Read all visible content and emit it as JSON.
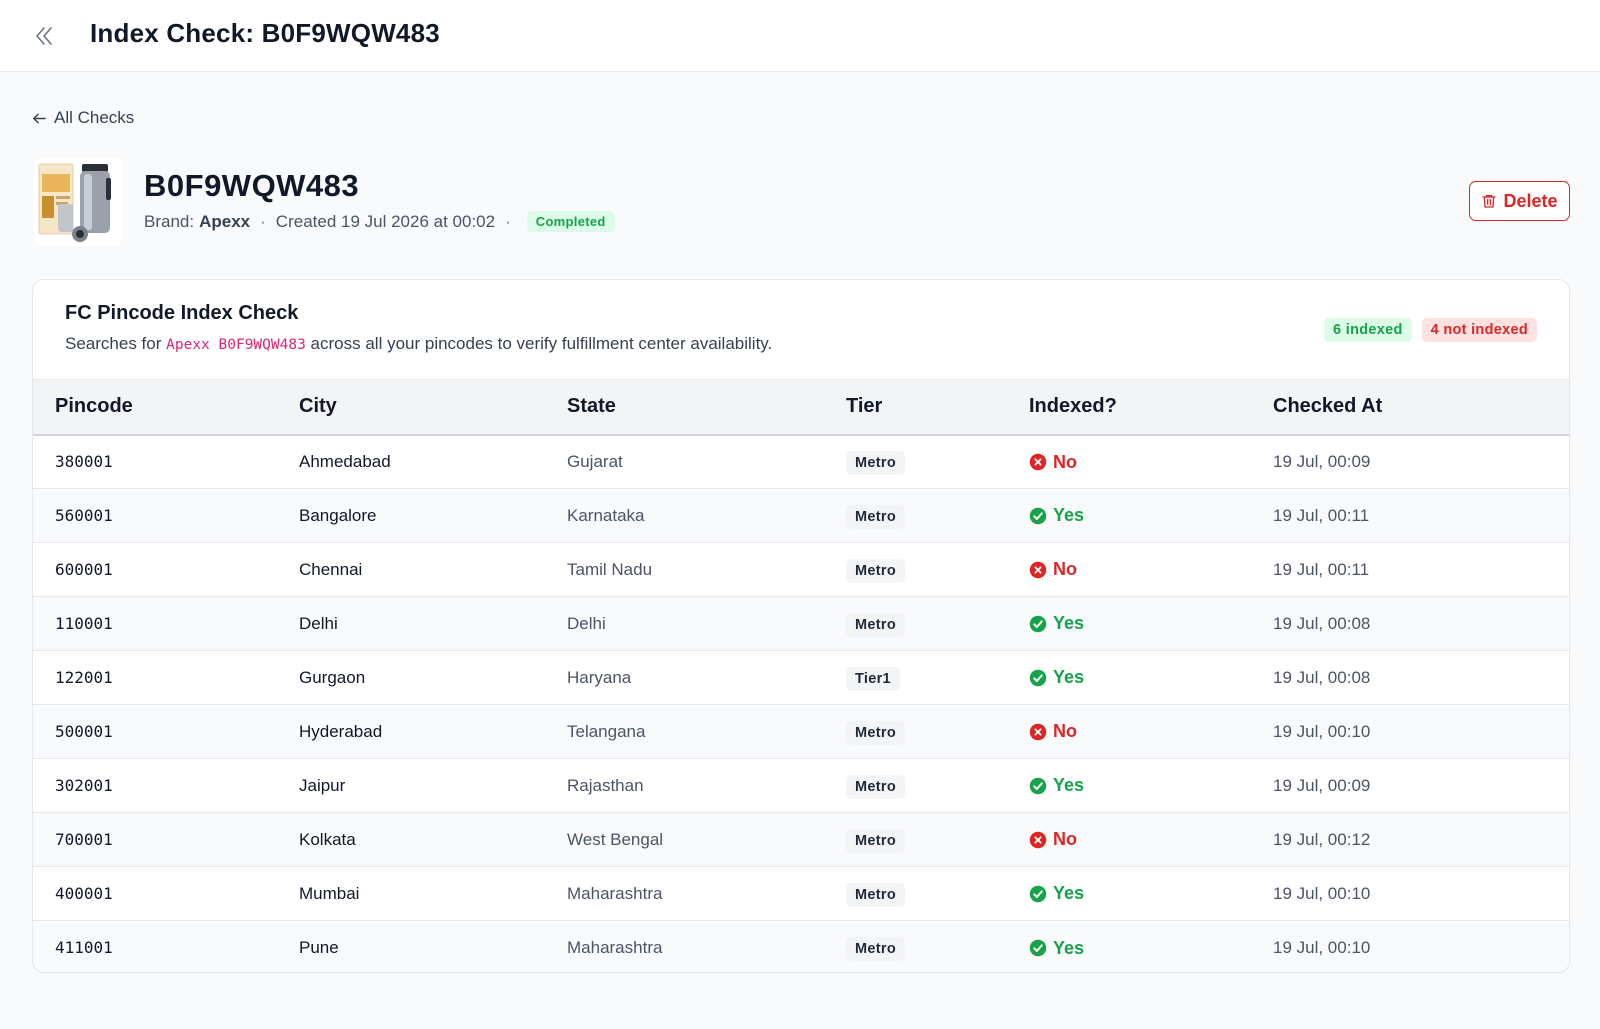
{
  "header": {
    "title": "Index Check: B0F9WQW483"
  },
  "nav": {
    "back_label": "All Checks"
  },
  "product": {
    "asin": "B0F9WQW483",
    "brand_label": "Brand:",
    "brand": "Apexx",
    "created": "Created 19 Jul 2026 at 00:02",
    "status": "Completed",
    "delete_label": "Delete"
  },
  "card": {
    "title": "FC Pincode Index Check",
    "subtitle_prefix": "Searches for",
    "query": "Apexx B0F9WQW483",
    "subtitle_suffix": "across all your pincodes to verify fulfillment center availability.",
    "indexed_count": "6 indexed",
    "not_indexed_count": "4 not indexed"
  },
  "table": {
    "headers": [
      "Pincode",
      "City",
      "State",
      "Tier",
      "Indexed?",
      "Checked At"
    ],
    "rows": [
      {
        "pincode": "380001",
        "city": "Ahmedabad",
        "state": "Gujarat",
        "tier": "Metro",
        "indexed": "No",
        "checked_at": "19 Jul, 00:09"
      },
      {
        "pincode": "560001",
        "city": "Bangalore",
        "state": "Karnataka",
        "tier": "Metro",
        "indexed": "Yes",
        "checked_at": "19 Jul, 00:11"
      },
      {
        "pincode": "600001",
        "city": "Chennai",
        "state": "Tamil Nadu",
        "tier": "Metro",
        "indexed": "No",
        "checked_at": "19 Jul, 00:11"
      },
      {
        "pincode": "110001",
        "city": "Delhi",
        "state": "Delhi",
        "tier": "Metro",
        "indexed": "Yes",
        "checked_at": "19 Jul, 00:08"
      },
      {
        "pincode": "122001",
        "city": "Gurgaon",
        "state": "Haryana",
        "tier": "Tier1",
        "indexed": "Yes",
        "checked_at": "19 Jul, 00:08"
      },
      {
        "pincode": "500001",
        "city": "Hyderabad",
        "state": "Telangana",
        "tier": "Metro",
        "indexed": "No",
        "checked_at": "19 Jul, 00:10"
      },
      {
        "pincode": "302001",
        "city": "Jaipur",
        "state": "Rajasthan",
        "tier": "Metro",
        "indexed": "Yes",
        "checked_at": "19 Jul, 00:09"
      },
      {
        "pincode": "700001",
        "city": "Kolkata",
        "state": "West Bengal",
        "tier": "Metro",
        "indexed": "No",
        "checked_at": "19 Jul, 00:12"
      },
      {
        "pincode": "400001",
        "city": "Mumbai",
        "state": "Maharashtra",
        "tier": "Metro",
        "indexed": "Yes",
        "checked_at": "19 Jul, 00:10"
      },
      {
        "pincode": "411001",
        "city": "Pune",
        "state": "Maharashtra",
        "tier": "Metro",
        "indexed": "Yes",
        "checked_at": "19 Jul, 00:10"
      }
    ]
  },
  "colors": {
    "yes": "#16a34a",
    "no": "#dc2626",
    "accent_code": "#db2777"
  },
  "icons": {
    "collapse": "double-chevron-left-icon",
    "back": "arrow-left-icon",
    "delete": "trash-icon",
    "yes": "check-circle-icon",
    "no": "x-circle-icon"
  }
}
